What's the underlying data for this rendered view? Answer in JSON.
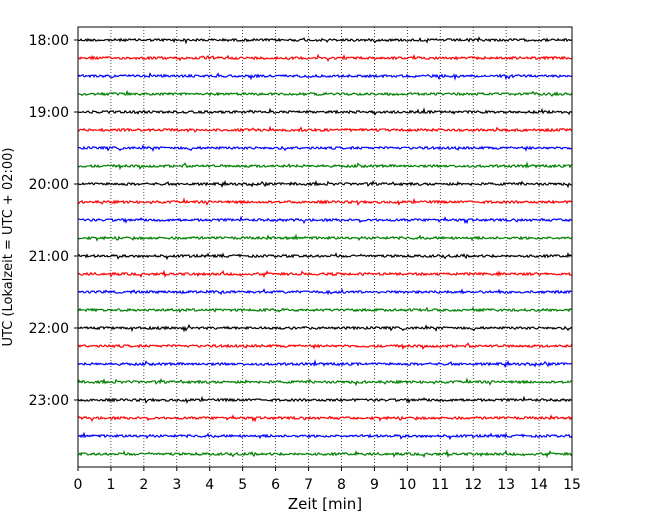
{
  "chart_data": {
    "type": "line",
    "title": "",
    "xlabel": "Zeit  [min]",
    "ylabel": "UTC (Lokalzeit = UTC + 02:00)",
    "xlim": [
      0,
      15
    ],
    "x_ticks": [
      "0",
      "1",
      "2",
      "3",
      "4",
      "5",
      "6",
      "7",
      "8",
      "9",
      "10",
      "11",
      "12",
      "13",
      "14",
      "15"
    ],
    "y_tick_labels": [
      "18:00",
      "19:00",
      "20:00",
      "21:00",
      "22:00",
      "23:00"
    ],
    "trace_start_time_range": [
      "18:00",
      "23:45"
    ],
    "trace_interval_minutes": 15,
    "trace_count": 24,
    "trace_colors": [
      "#000000",
      "#ff0000",
      "#0000ff",
      "#008000"
    ],
    "vertical_grid": true,
    "grid_style": "dotted"
  }
}
